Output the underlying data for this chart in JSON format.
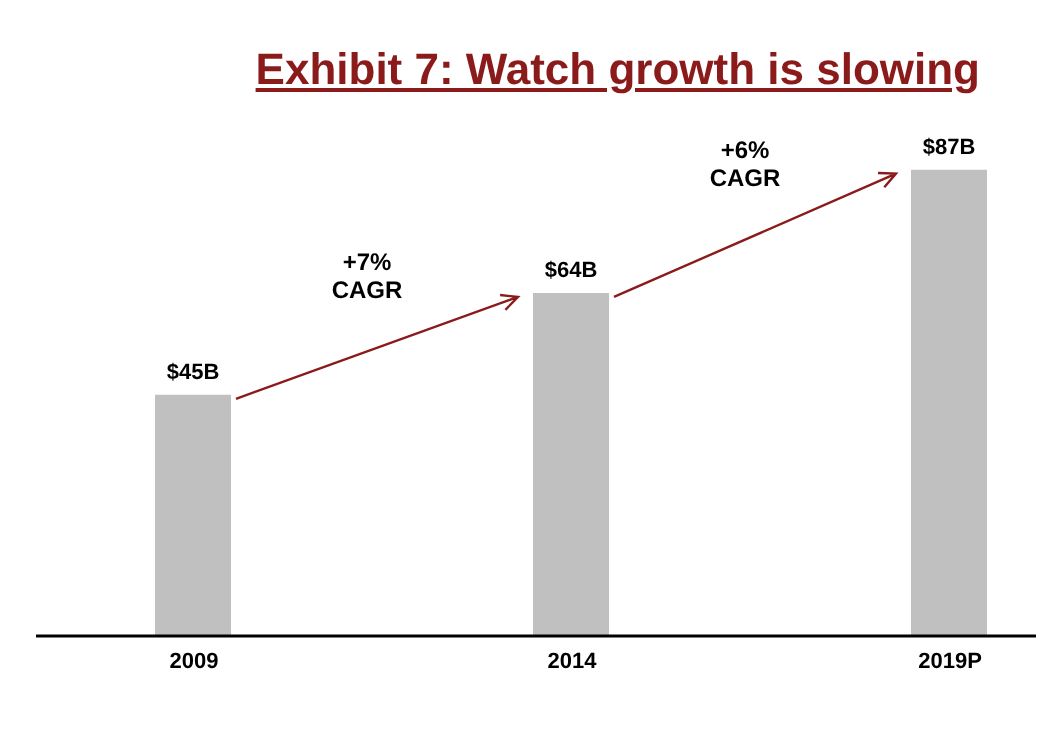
{
  "chart_data": {
    "type": "bar",
    "title": "Exhibit 7: Watch growth is slowing",
    "categories": [
      "2009",
      "2014",
      "2019P"
    ],
    "values": [
      45,
      64,
      87
    ],
    "color": "#c0c0c0",
    "value_labels": [
      "$45B",
      "$64B",
      "$87B"
    ],
    "annotations": [
      "+7% CAGR",
      "+6% CAGR"
    ],
    "grid": false,
    "legend": false
  }
}
